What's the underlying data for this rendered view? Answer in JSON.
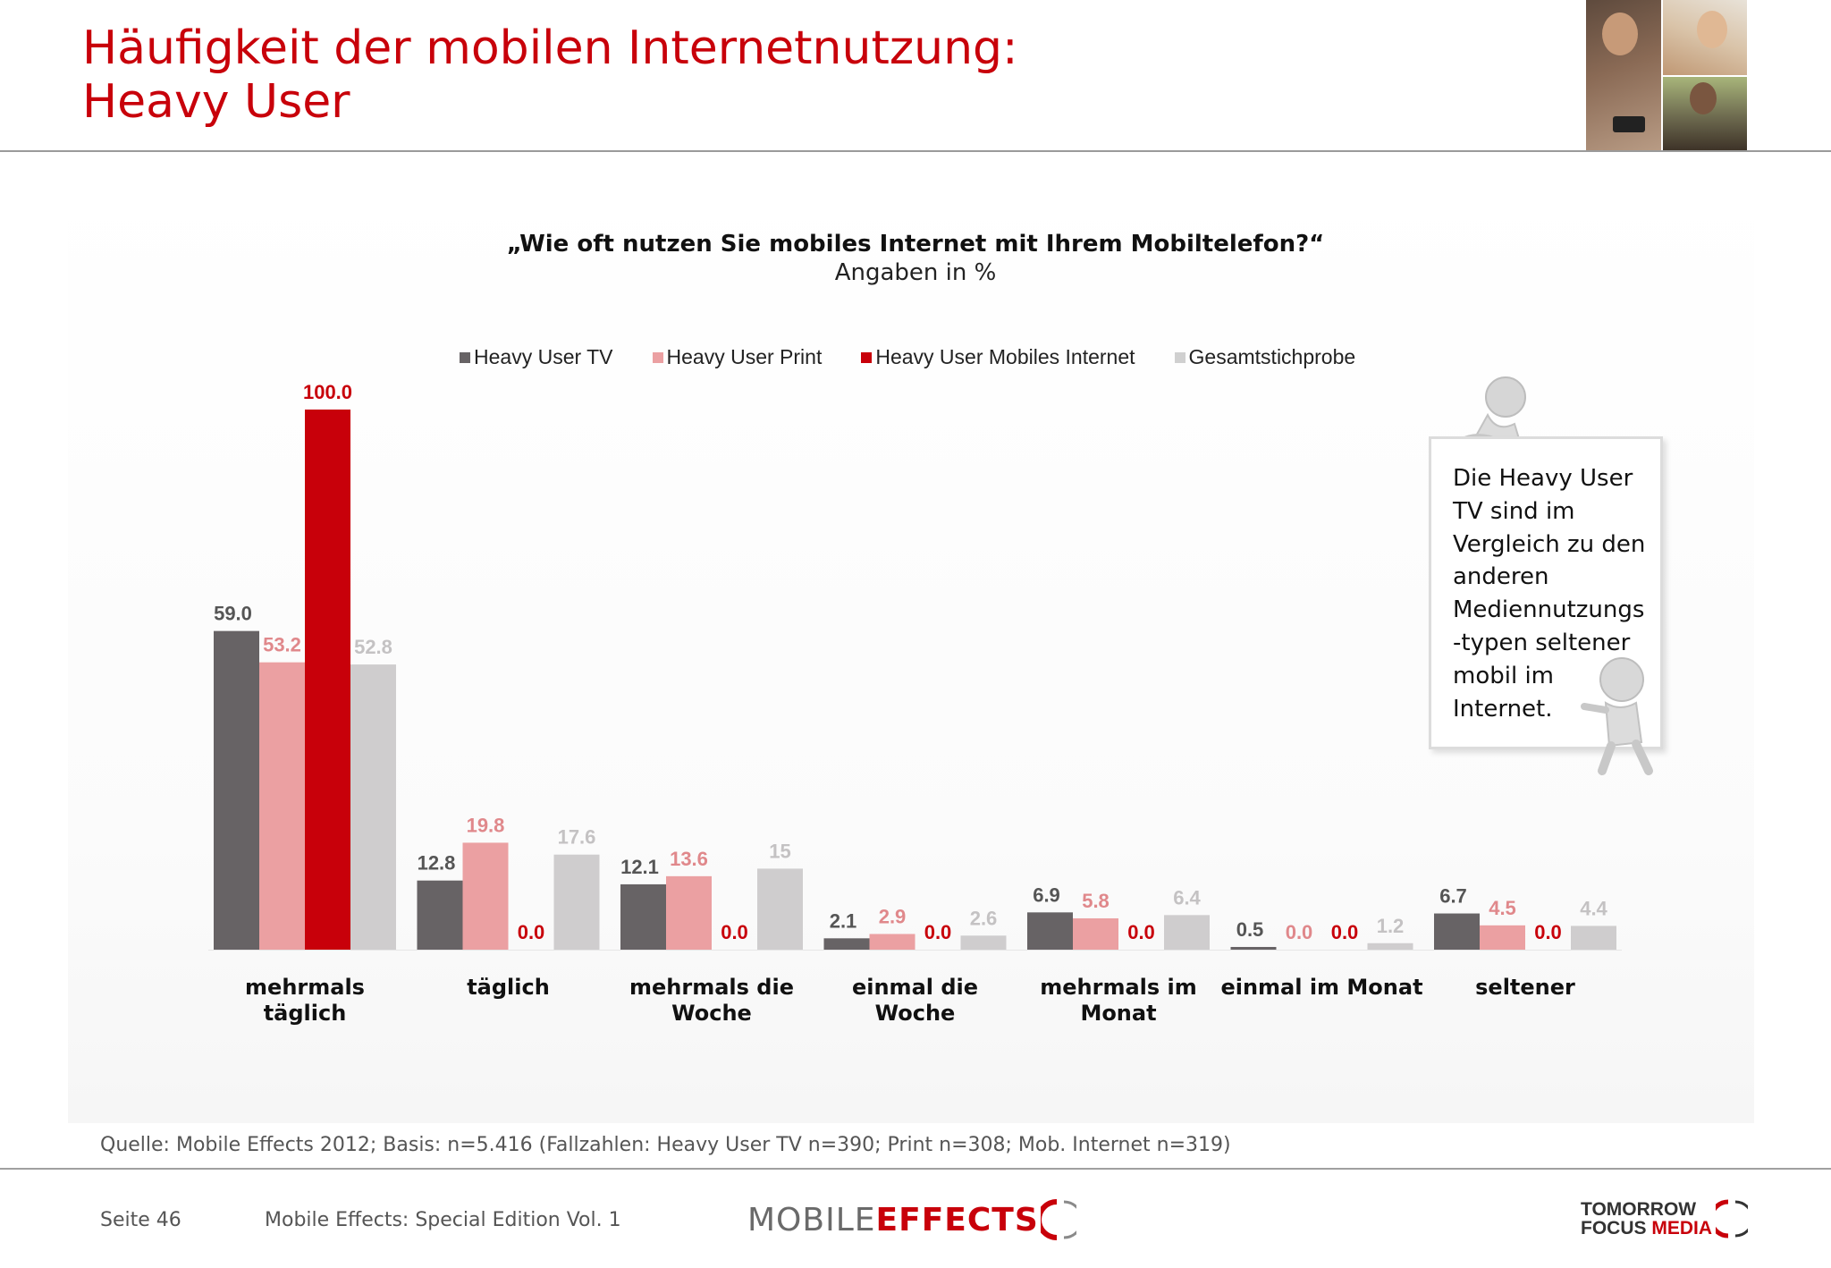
{
  "header": {
    "title_line1": "Häufigkeit der mobilen Internetnutzung:",
    "title_line2": "Heavy User",
    "accent_color": "#c8000a"
  },
  "chart_data": {
    "type": "bar",
    "title": "„Wie oft nutzen Sie mobiles Internet mit Ihrem Mobiltelefon?“",
    "subtitle": "Angaben in %",
    "categories": [
      [
        "mehrmals",
        "täglich"
      ],
      [
        "täglich"
      ],
      [
        "mehrmals die",
        "Woche"
      ],
      [
        "einmal die",
        "Woche"
      ],
      [
        "mehrmals im",
        "Monat"
      ],
      [
        "einmal im Monat"
      ],
      [
        "seltener"
      ]
    ],
    "series": [
      {
        "name": "Heavy User TV",
        "color": "#676365",
        "label_color": "#555555",
        "values": [
          59.0,
          12.8,
          12.1,
          2.1,
          6.9,
          0.5,
          6.7
        ],
        "labels": [
          "59.0",
          "12.8",
          "12.1",
          "2.1",
          "6.9",
          "0.5",
          "6.7"
        ]
      },
      {
        "name": "Heavy User Print",
        "color": "#eba0a2",
        "label_color": "#e0888b",
        "values": [
          53.2,
          19.8,
          13.6,
          2.9,
          5.8,
          0.0,
          4.5
        ],
        "labels": [
          "53.2",
          "19.8",
          "13.6",
          "2.9",
          "5.8",
          "0.0",
          "4.5"
        ]
      },
      {
        "name": "Heavy User Mobiles Internet",
        "color": "#c8000a",
        "label_color": "#c8000a",
        "values": [
          100.0,
          0.0,
          0.0,
          0.0,
          0.0,
          0.0,
          0.0
        ],
        "labels": [
          "100.0",
          "0.0",
          "0.0",
          "0.0",
          "0.0",
          "0.0",
          "0.0"
        ]
      },
      {
        "name": "Gesamtstichprobe",
        "color": "#cfcdce",
        "label_color": "#c4c2c3",
        "values": [
          52.8,
          17.6,
          15,
          2.6,
          6.4,
          1.2,
          4.4
        ],
        "labels": [
          "52.8",
          "17.6",
          "15",
          "2.6",
          "6.4",
          "1.2",
          "4.4"
        ]
      }
    ],
    "ylim": [
      0,
      100
    ],
    "xlabel": "",
    "ylabel": "",
    "grid": false,
    "legend_position": "top"
  },
  "note": {
    "text": "Die Heavy User TV sind im Vergleich zu den anderen Mediennutzungs -typen seltener mobil im Internet."
  },
  "footer": {
    "source": "Quelle: Mobile Effects 2012; Basis: n=5.416 (Fallzahlen: Heavy User TV n=390; Print n=308; Mob. Internet n=319)",
    "page": "Seite 46",
    "edition": "Mobile Effects: Special Edition Vol. 1",
    "logo_mobile_a": "MOBILE",
    "logo_mobile_b": "EFFECTS",
    "logo_tfm_1": "TOMORROW",
    "logo_tfm_2": "FOCUS",
    "logo_tfm_3": "MEDIA"
  }
}
